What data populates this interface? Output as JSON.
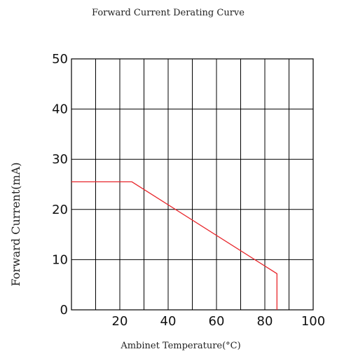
{
  "chart_data": {
    "type": "line",
    "title": "Forward Current Derating Curve",
    "xlabel": "Ambinet Temperature(°C)",
    "ylabel": "Forward Current(mA)",
    "xlim": [
      0,
      100
    ],
    "ylim": [
      0,
      50
    ],
    "x_ticks": [
      20,
      40,
      60,
      80,
      100
    ],
    "y_ticks": [
      0,
      10,
      20,
      30,
      40,
      50
    ],
    "grid": true,
    "x_gridlines": [
      0,
      10,
      20,
      30,
      40,
      50,
      60,
      70,
      80,
      90,
      100
    ],
    "y_gridlines": [
      0,
      10,
      20,
      30,
      40,
      50
    ],
    "series": [
      {
        "color": "#e8262b",
        "x": [
          0,
          25,
          85,
          85
        ],
        "y": [
          25.5,
          25.5,
          7.2,
          0
        ]
      }
    ]
  }
}
